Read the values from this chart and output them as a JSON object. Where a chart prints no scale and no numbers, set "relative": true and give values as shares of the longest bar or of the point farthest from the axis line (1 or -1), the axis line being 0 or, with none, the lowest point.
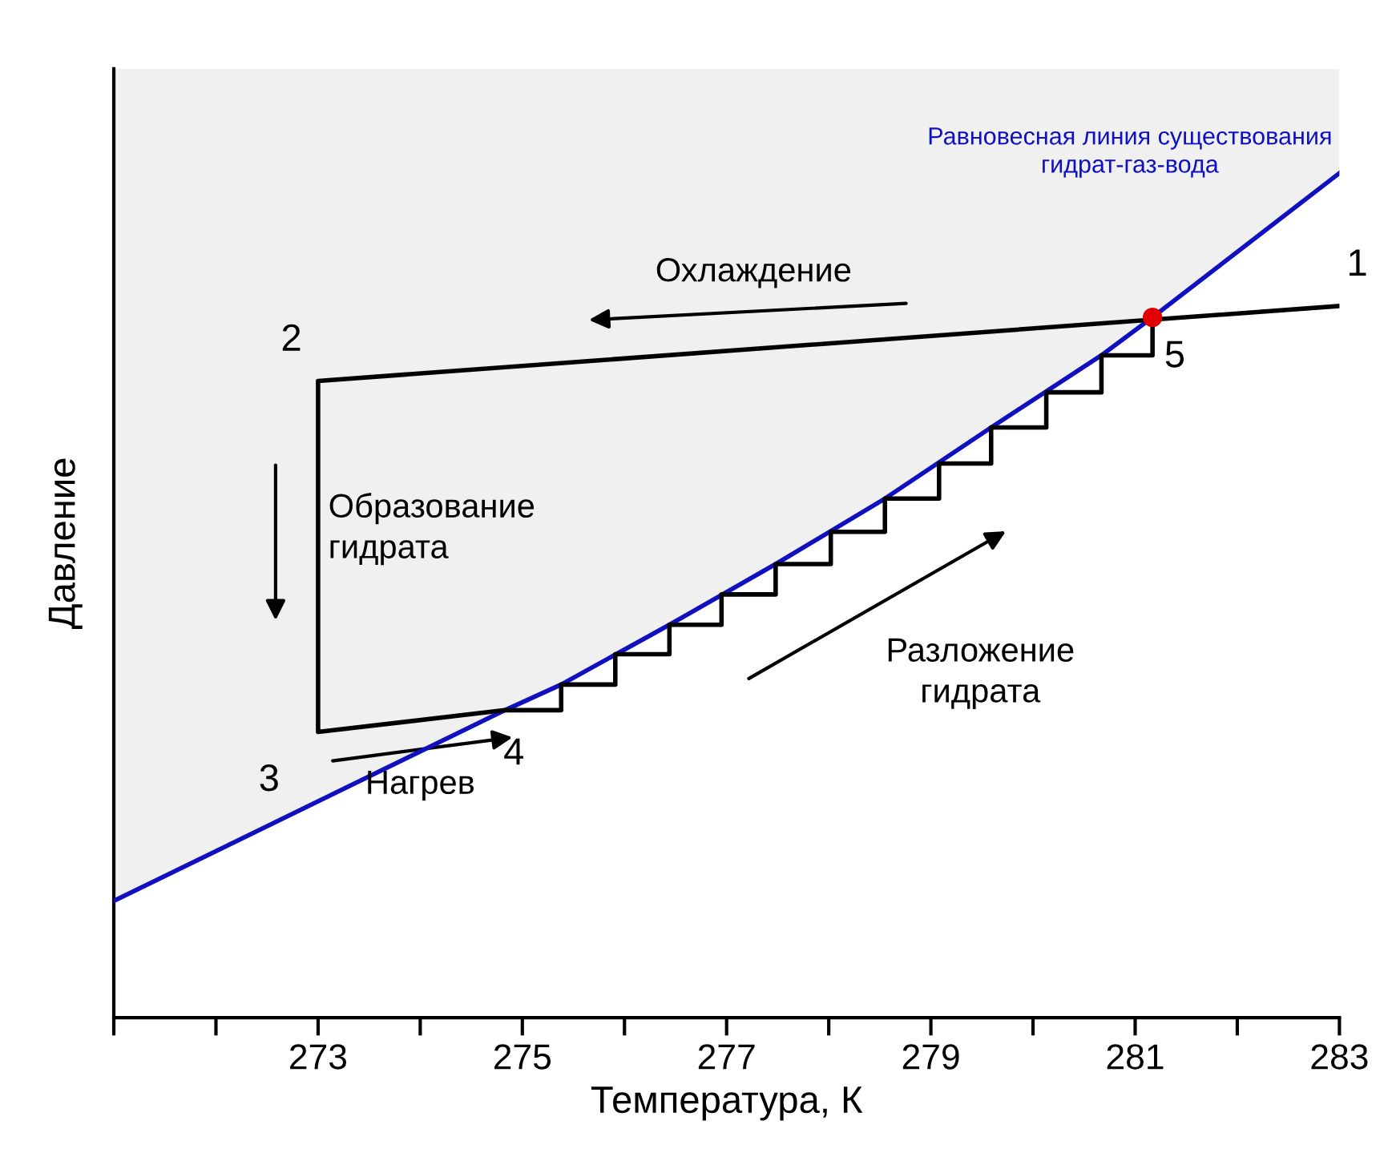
{
  "chart_data": {
    "type": "line",
    "relative": true,
    "xlabel": "Температура, К",
    "ylabel": "Давление",
    "xlim": [
      271,
      283
    ],
    "xticks": [
      {
        "value": 271,
        "label": null
      },
      {
        "value": 272,
        "label": null
      },
      273,
      {
        "value": 274,
        "label": null
      },
      275,
      {
        "value": 276,
        "label": null
      },
      277,
      {
        "value": 278,
        "label": null
      },
      279,
      {
        "value": 280,
        "label": null
      },
      281,
      {
        "value": 282,
        "label": null
      },
      283
    ],
    "grid": false,
    "legend": false,
    "series": [
      {
        "type": "area",
        "color": "#f0f0f0",
        "x": [
          271,
          274.83,
          275.38,
          276.44,
          277.48,
          278.55,
          279.59,
          280.67,
          281.17,
          283
        ],
        "values": [
          1,
          1,
          1,
          1,
          1,
          1,
          1,
          1,
          1,
          1
        ]
      },
      {
        "type": "line",
        "name": "Равновесная линия существования\nгидрат-газ-вода",
        "color": "#1010c0",
        "x": [
          271,
          274.83,
          275.38,
          276.44,
          277.48,
          278.55,
          279.59,
          280.67,
          281.17,
          283
        ],
        "values": [
          0.123,
          0.324,
          0.351,
          0.414,
          0.478,
          0.547,
          0.622,
          0.698,
          0.738,
          0.89
        ]
      },
      {
        "type": "line",
        "color": "#000000",
        "x": [
          283,
          273,
          273,
          274.83,
          275.38,
          275.38,
          275.91,
          275.91,
          276.44,
          276.44,
          276.95,
          276.95,
          277.48,
          277.48,
          278.02,
          278.02,
          278.55,
          278.55,
          279.08,
          279.08,
          279.59,
          279.59,
          280.13,
          280.13,
          280.67,
          280.67,
          281.17,
          281.17
        ],
        "values": [
          0.75,
          0.671,
          0.301,
          0.324,
          0.324,
          0.351,
          0.351,
          0.383,
          0.383,
          0.414,
          0.414,
          0.446,
          0.446,
          0.478,
          0.478,
          0.512,
          0.512,
          0.547,
          0.547,
          0.584,
          0.584,
          0.622,
          0.622,
          0.659,
          0.659,
          0.698,
          0.698,
          0.738
        ]
      },
      {
        "type": "scatter",
        "color": "#e00000",
        "marker": "circle",
        "x": [
          281.17
        ],
        "values": [
          0.738
        ]
      }
    ],
    "annotations": [
      "Охлаждение",
      "Образование\nгидрата",
      "Нагрев",
      "Разложение\nгидрата",
      {
        "text": "1",
        "x": 283,
        "y": 0.75
      },
      {
        "text": "2",
        "x": 273,
        "y": 0.671
      },
      {
        "text": "3",
        "x": 273,
        "y": 0.301
      },
      {
        "text": "4",
        "x": 274.83,
        "y": 0.324
      },
      {
        "text": "5",
        "x": 281.17,
        "y": 0.738
      }
    ]
  }
}
